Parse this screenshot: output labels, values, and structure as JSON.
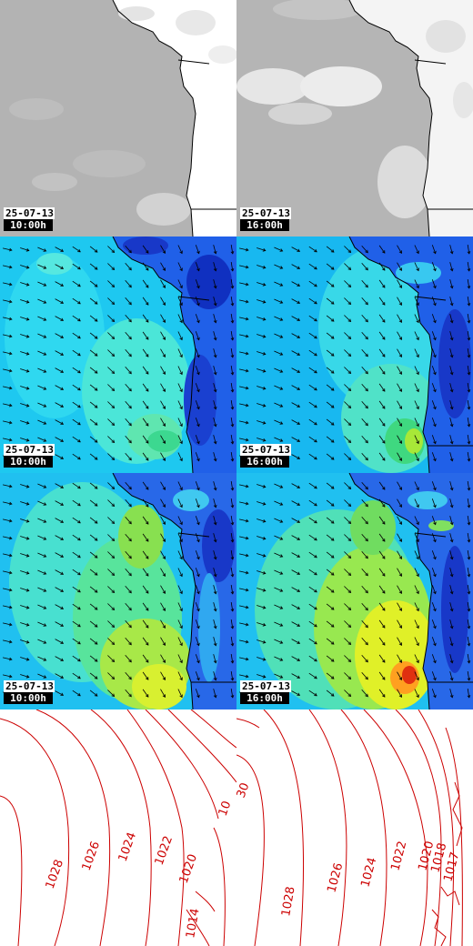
{
  "panels": [
    {
      "row": "cloud",
      "variant": "cloud-a",
      "date": "25-07-13",
      "time": "10:00h"
    },
    {
      "row": "cloud",
      "variant": "cloud-b",
      "date": "25-07-13",
      "time": "16:00h"
    },
    {
      "row": "wind-low",
      "variant": "wind-a",
      "date": "25-07-13",
      "time": "10:00h"
    },
    {
      "row": "wind-low",
      "variant": "wind-b",
      "date": "25-07-13",
      "time": "16:00h"
    },
    {
      "row": "wind-high",
      "variant": "wind-c",
      "date": "25-07-13",
      "time": "10:00h"
    },
    {
      "row": "wind-high",
      "variant": "wind-d",
      "date": "25-07-13",
      "time": "16:00h"
    }
  ],
  "pressure_left": {
    "labels": [
      "1028",
      "1026",
      "1024",
      "1022",
      "1020",
      "1014",
      "10"
    ]
  },
  "pressure_right": {
    "labels": [
      "1028",
      "1026",
      "1024",
      "1022",
      "1020",
      "1018",
      "1017",
      "30"
    ]
  },
  "colors": {
    "contour": "#cc0000",
    "coast": "#000000",
    "cloud_bg": "#b4b4b4",
    "land": "#ffffff"
  }
}
